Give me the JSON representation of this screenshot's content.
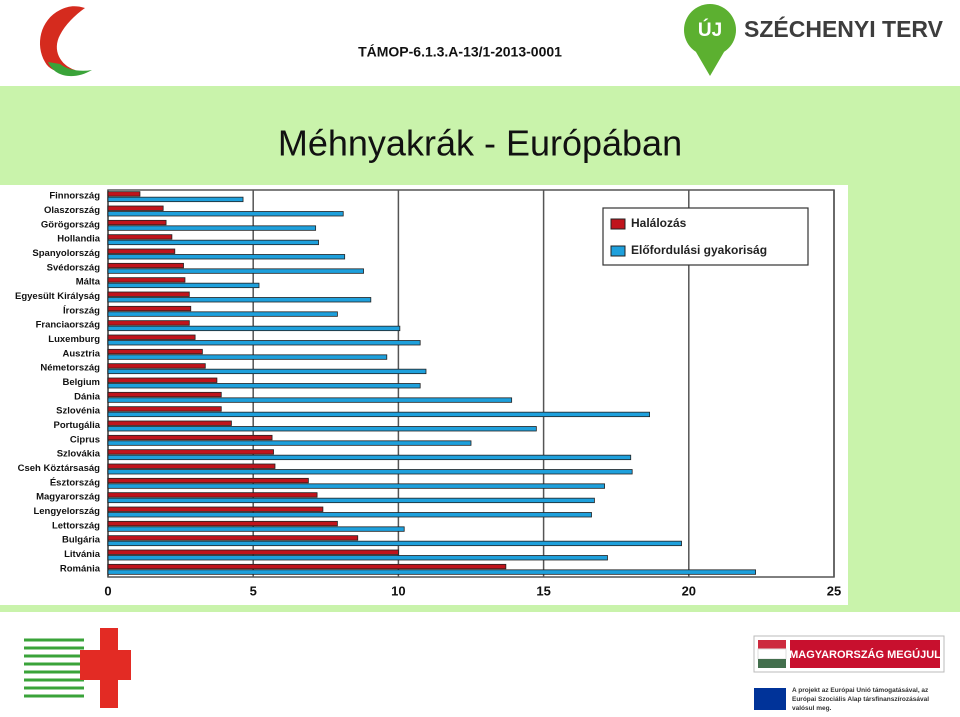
{
  "header": {
    "project_code": "TÁMOP-6.1.3.A-13/1-2013-0001",
    "logo_badge": "ÚJ",
    "logo_text": "SZÉCHENYI TERV"
  },
  "footer": {
    "banner": "MAGYARORSZÁG MEGÚJUL",
    "eu_note": "A projekt az Európai Unió támogatásával, az Európai Szociális Alap társfinanszírozásával valósul meg."
  },
  "chart_data": {
    "type": "bar",
    "orientation": "horizontal",
    "title": "Méhnyakrák - Európában",
    "categories": [
      "Finnország",
      "Olaszország",
      "Görögország",
      "Hollandia",
      "Spanyolország",
      "Svédország",
      "Málta",
      "Egyesült Királyság",
      "Írország",
      "Franciaország",
      "Luxemburg",
      "Ausztria",
      "Németország",
      "Belgium",
      "Dánia",
      "Szlovénia",
      "Portugália",
      "Ciprus",
      "Szlovákia",
      "Cseh Köztársaság",
      "Észtország",
      "Magyarország",
      "Lengyelország",
      "Lettország",
      "Bulgária",
      "Litvánia",
      "Románia"
    ],
    "series": [
      {
        "name": "Halálozás",
        "color": "#c0141c",
        "values": [
          1.1,
          1.9,
          2.0,
          2.2,
          2.3,
          2.6,
          2.65,
          2.8,
          2.85,
          2.8,
          3.0,
          3.25,
          3.35,
          3.75,
          3.9,
          3.9,
          4.25,
          5.65,
          5.7,
          5.75,
          6.9,
          7.2,
          7.4,
          7.9,
          8.6,
          10.0,
          13.7
        ]
      },
      {
        "name": "Előfordulási gyakoriság",
        "color": "#1ea0dc",
        "values": [
          4.65,
          8.1,
          7.15,
          7.25,
          8.15,
          8.8,
          5.2,
          9.05,
          7.9,
          10.05,
          10.75,
          9.6,
          10.95,
          10.75,
          13.9,
          18.65,
          14.75,
          12.5,
          18.0,
          18.05,
          17.1,
          16.75,
          16.65,
          10.2,
          19.75,
          17.2,
          22.3
        ]
      }
    ],
    "xlim": [
      0,
      25
    ],
    "xticks": [
      0,
      5,
      10,
      15,
      20,
      25
    ],
    "grid": true,
    "legend": "top-right"
  }
}
